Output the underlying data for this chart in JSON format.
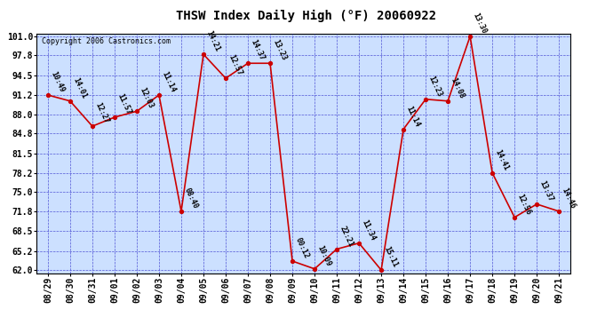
{
  "title": "THSW Index Daily High (°F) 20060922",
  "copyright": "Copyright 2006 Castronics.com",
  "background_color": "#ffffff",
  "plot_bg_color": "#cce0ff",
  "grid_color": "#3333cc",
  "line_color": "#cc0000",
  "marker_color": "#cc0000",
  "dates": [
    "08/29",
    "08/30",
    "08/31",
    "09/01",
    "09/02",
    "09/03",
    "09/04",
    "09/05",
    "09/06",
    "09/07",
    "09/08",
    "09/09",
    "09/10",
    "09/11",
    "09/12",
    "09/13",
    "09/14",
    "09/15",
    "09/16",
    "09/17",
    "09/18",
    "09/19",
    "09/20",
    "09/21"
  ],
  "values": [
    91.2,
    90.2,
    86.0,
    87.5,
    88.5,
    91.2,
    71.8,
    98.0,
    94.0,
    96.5,
    96.5,
    63.5,
    62.2,
    65.5,
    66.5,
    62.0,
    85.5,
    90.5,
    90.2,
    101.0,
    78.2,
    70.8,
    73.0,
    71.8
  ],
  "labels": [
    "10:49",
    "14:01",
    "12:27",
    "11:57",
    "12:03",
    "11:14",
    "08:40",
    "14:21",
    "12:57",
    "14:37",
    "13:23",
    "00:12",
    "10:09",
    "22:21",
    "11:34",
    "15:11",
    "11:14",
    "12:23",
    "14:08",
    "13:30",
    "14:41",
    "12:56",
    "13:37",
    "14:46"
  ],
  "ylim": [
    62.0,
    101.0
  ],
  "yticks": [
    62.0,
    65.2,
    68.5,
    71.8,
    75.0,
    78.2,
    81.5,
    84.8,
    88.0,
    91.2,
    94.5,
    97.8,
    101.0
  ],
  "title_fontsize": 10,
  "tick_fontsize": 7,
  "label_fontsize": 6,
  "copyright_fontsize": 6
}
